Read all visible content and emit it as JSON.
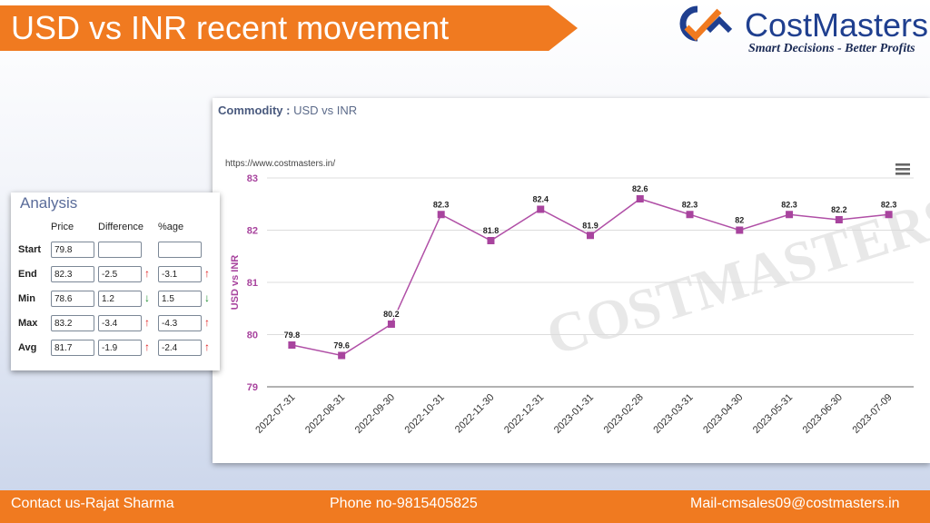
{
  "title": "USD vs INR recent movement",
  "logo": {
    "name": "CostMasters",
    "tagline": "Smart Decisions - Better Profits"
  },
  "commodity": {
    "label": "Commodity :",
    "value": "USD vs INR"
  },
  "footer": {
    "contact": "Contact us-Rajat Sharma",
    "phone": "Phone no-9815405825",
    "mail": "Mail-cmsales09@costmasters.in"
  },
  "analysis": {
    "title": "Analysis",
    "columns": [
      "Price",
      "Difference",
      "%age"
    ],
    "rows": [
      {
        "label": "Start",
        "price": "79.8",
        "diff": "",
        "pct": "",
        "diff_dir": "",
        "pct_dir": ""
      },
      {
        "label": "End",
        "price": "82.3",
        "diff": "-2.5",
        "pct": "-3.1",
        "diff_dir": "up",
        "pct_dir": "up"
      },
      {
        "label": "Min",
        "price": "78.6",
        "diff": "1.2",
        "pct": "1.5",
        "diff_dir": "down",
        "pct_dir": "down"
      },
      {
        "label": "Max",
        "price": "83.2",
        "diff": "-3.4",
        "pct": "-4.3",
        "diff_dir": "up",
        "pct_dir": "up"
      },
      {
        "label": "Avg",
        "price": "81.7",
        "diff": "-1.9",
        "pct": "-2.4",
        "diff_dir": "up",
        "pct_dir": "up"
      }
    ]
  },
  "chart_data": {
    "type": "line",
    "credit": "https://www.costmasters.in/",
    "watermark": "COSTMASTERS",
    "ylabel": "USD vs INR",
    "ylim": [
      79,
      83
    ],
    "yticks": [
      79,
      80,
      81,
      82,
      83
    ],
    "categories": [
      "2022-07-31",
      "2022-08-31",
      "2022-09-30",
      "2022-10-31",
      "2022-11-30",
      "2022-12-31",
      "2023-01-31",
      "2023-02-28",
      "2023-03-31",
      "2023-04-30",
      "2023-05-31",
      "2023-06-30",
      "2023-07-09"
    ],
    "values": [
      79.8,
      79.6,
      80.2,
      82.3,
      81.8,
      82.4,
      81.9,
      82.6,
      82.3,
      82,
      82.3,
      82.2,
      82.3
    ],
    "value_labels": [
      "79.8",
      "79.6",
      "80.2",
      "82.3",
      "81.8",
      "82.4",
      "81.9",
      "82.6",
      "82.3",
      "82",
      "82.3",
      "82.2",
      "82.3"
    ],
    "grid": true,
    "colors": {
      "line": "#b04fa6",
      "marker": "#a8449e",
      "axis_label": "#a8449e"
    }
  }
}
